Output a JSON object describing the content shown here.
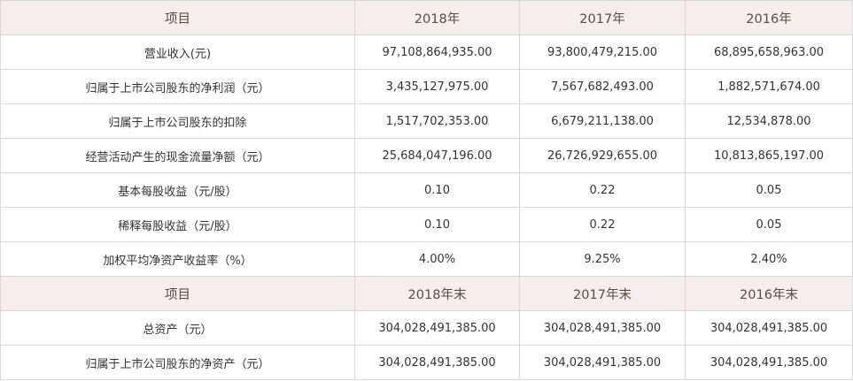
{
  "table": {
    "header1": [
      "项目",
      "2018年",
      "2017年",
      "2016年"
    ],
    "rows1": [
      [
        "营业收入(元)",
        "97,108,864,935.00",
        "93,800,479,215.00",
        "68,895,658,963.00"
      ],
      [
        "归属于上市公司股东的净利润（元）",
        "3,435,127,975.00",
        "7,567,682,493.00",
        "1,882,571,674.00"
      ],
      [
        "归属于上市公司股东的扣除",
        "1,517,702,353.00",
        "6,679,211,138.00",
        "12,534,878.00"
      ],
      [
        "经营活动产生的现金流量净额（元）",
        "25,684,047,196.00",
        "26,726,929,655.00",
        "10,813,865,197.00"
      ],
      [
        "基本每股收益（元/股）",
        "0.10",
        "0.22",
        "0.05"
      ],
      [
        "稀释每股收益（元/股）",
        "0.10",
        "0.22",
        "0.05"
      ],
      [
        "加权平均净资产收益率（%）",
        "4.00%",
        "9.25%",
        "2.40%"
      ]
    ],
    "header2": [
      "项目",
      "2018年末",
      "2017年末",
      "2016年末"
    ],
    "rows2": [
      [
        "总资产（元）",
        "304,028,491,385.00",
        "304,028,491,385.00",
        "304,028,491,385.00"
      ],
      [
        "归属于上市公司股东的净资产（元）",
        "304,028,491,385.00",
        "304,028,491,385.00",
        "304,028,491,385.00"
      ]
    ]
  }
}
